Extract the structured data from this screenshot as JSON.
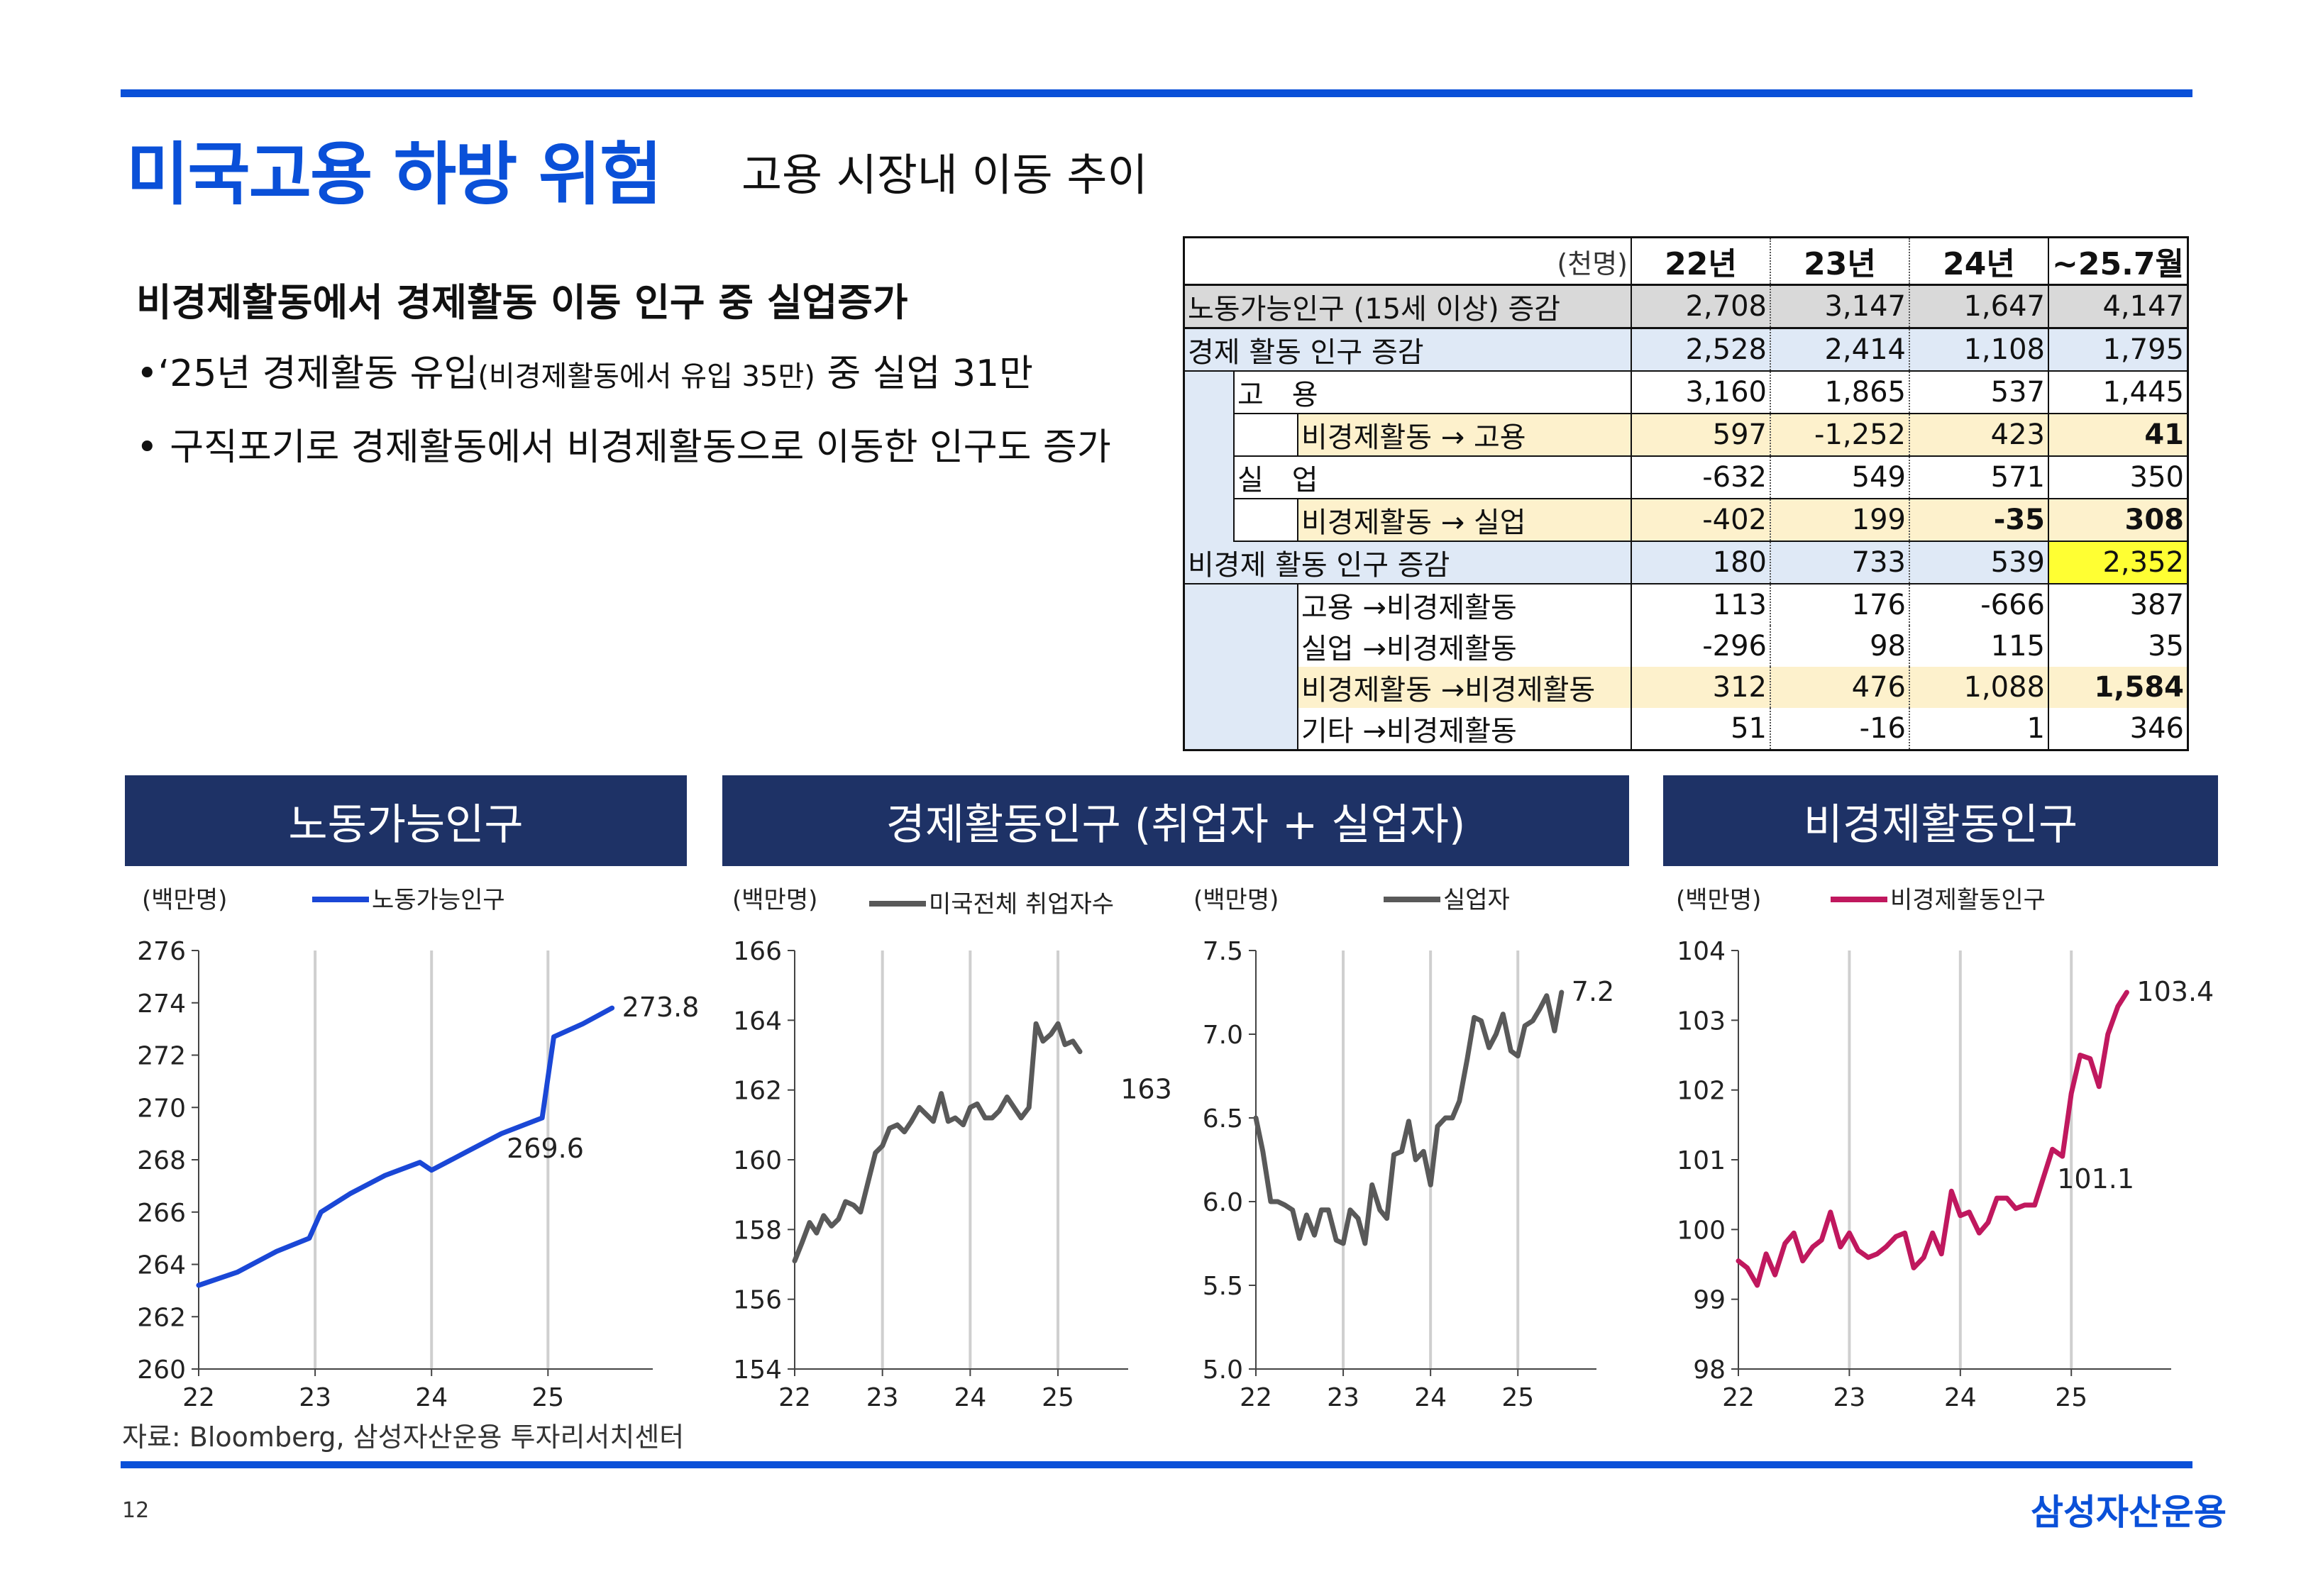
{
  "header": {
    "title": "미국고용 하방 위험",
    "subtitle": "고용 시장내 이동 추이"
  },
  "text": {
    "lead": "비경제활동에서 경제활동 이동 인구 중 실업증가",
    "bullet1_main": "•‘25년 경제활동 유입",
    "bullet1_small": "(비경제활동에서 유입 35만)",
    "bullet1_tail": " 중 실업 31만",
    "bullet2": "• 구직포기로 경제활동에서 비경제활동으로 이동한 인구도 증가"
  },
  "table": {
    "unit": "(천명)",
    "columns": [
      "22년",
      "23년",
      "24년",
      "~25.7월"
    ],
    "rows": [
      {
        "label": "노동가능인구 (15세 이상) 증감",
        "values": [
          "2,708",
          "3,147",
          "1,647",
          "4,147"
        ]
      },
      {
        "label": "경제 활동 인구 증감",
        "values": [
          "2,528",
          "2,414",
          "1,108",
          "1,795"
        ]
      },
      {
        "label": "고　용",
        "values": [
          "3,160",
          "1,865",
          "537",
          "1,445"
        ]
      },
      {
        "label": "비경제활동 → 고용",
        "values": [
          "597",
          "-1,252",
          "423",
          "41"
        ]
      },
      {
        "label": "실　업",
        "values": [
          "-632",
          "549",
          "571",
          "350"
        ]
      },
      {
        "label": "비경제활동 → 실업",
        "values": [
          "-402",
          "199",
          "-35",
          "308"
        ]
      },
      {
        "label": "비경제 활동 인구 증감",
        "values": [
          "180",
          "733",
          "539",
          "2,352"
        ]
      },
      {
        "label": "고용 →비경제활동",
        "values": [
          "113",
          "176",
          "-666",
          "387"
        ]
      },
      {
        "label": "실업 →비경제활동",
        "values": [
          "-296",
          "98",
          "115",
          "35"
        ]
      },
      {
        "label": "비경제활동 →비경제활동",
        "values": [
          "312",
          "476",
          "1,088",
          "1,584"
        ]
      },
      {
        "label": "기타 →비경제활동",
        "values": [
          "51",
          "-16",
          "1",
          "346"
        ]
      }
    ]
  },
  "panels": {
    "labor": "노동가능인구",
    "active": "경제활동인구 (취업자 + 실업자)",
    "inactive": "비경제활동인구"
  },
  "footer": {
    "source": "자료: Bloomberg, 삼성자산운용 투자리서치센터",
    "page": "12",
    "logo": "삼성자산운용"
  },
  "colors": {
    "accent": "#0a50d8",
    "panel_header": "#1e3266",
    "labor_line": "#1a47d6",
    "grey_line": "#595959",
    "inactive_line": "#c0185e"
  },
  "chart_data": [
    {
      "type": "line",
      "unit": "(백만명)",
      "series": [
        {
          "name": "노동가능인구",
          "color": "#1a47d6",
          "x": [
            22.0,
            22.33,
            22.67,
            22.95,
            23.05,
            23.3,
            23.6,
            23.9,
            24.0,
            24.3,
            24.6,
            24.95,
            25.05,
            25.3,
            25.55
          ],
          "values": [
            263.2,
            263.7,
            264.5,
            265.0,
            266.0,
            266.7,
            267.4,
            267.9,
            267.6,
            268.3,
            269.0,
            269.6,
            272.7,
            273.2,
            273.8
          ]
        }
      ],
      "annotations": [
        {
          "x": 25.55,
          "y": 273.8,
          "text": "273.8"
        },
        {
          "x": 24.95,
          "y": 269.6,
          "text": "269.6"
        }
      ],
      "yticks": [
        "276",
        "274",
        "272",
        "270",
        "268",
        "266",
        "264",
        "262",
        "260"
      ],
      "xticks": [
        "22",
        "23",
        "24",
        "25"
      ],
      "ylim": [
        260,
        276
      ],
      "xlim": [
        22,
        25.9
      ]
    },
    {
      "type": "line",
      "unit": "(백만명)",
      "series": [
        {
          "name": "미국전체 취업자수",
          "color": "#595959",
          "x": [
            22.0,
            22.08,
            22.17,
            22.25,
            22.33,
            22.42,
            22.5,
            22.58,
            22.67,
            22.75,
            22.83,
            22.92,
            23.0,
            23.08,
            23.17,
            23.25,
            23.33,
            23.42,
            23.5,
            23.58,
            23.67,
            23.75,
            23.83,
            23.92,
            24.0,
            24.08,
            24.17,
            24.25,
            24.33,
            24.42,
            24.5,
            24.58,
            24.67,
            24.75,
            24.83,
            24.92,
            25.0,
            25.08,
            25.17,
            25.25,
            25.33,
            25.42,
            25.5
          ],
          "values": [
            157.1,
            157.6,
            158.2,
            157.9,
            158.4,
            158.1,
            158.3,
            158.8,
            158.7,
            158.5,
            159.3,
            160.2,
            160.4,
            160.9,
            161.0,
            160.8,
            161.1,
            161.5,
            161.3,
            161.1,
            161.9,
            161.1,
            161.2,
            161.0,
            161.5,
            161.6,
            161.2,
            161.2,
            161.4,
            161.8,
            161.5,
            161.2,
            161.5,
            163.9,
            163.4,
            163.6,
            163.9,
            163.3,
            163.4,
            163.1,
            null,
            null,
            null
          ]
        }
      ],
      "annotations": [
        {
          "x": 25.6,
          "y": 162.0,
          "text": "163"
        }
      ],
      "yticks": [
        "166",
        "164",
        "162",
        "160",
        "158",
        "156",
        "154"
      ],
      "xticks": [
        "22",
        "23",
        "24",
        "25"
      ],
      "ylim": [
        154,
        166
      ],
      "xlim": [
        22,
        25.8
      ]
    },
    {
      "type": "line",
      "unit": "(백만명)",
      "series": [
        {
          "name": "실업자",
          "color": "#595959",
          "x": [
            22.0,
            22.08,
            22.17,
            22.25,
            22.33,
            22.42,
            22.5,
            22.58,
            22.67,
            22.75,
            22.83,
            22.92,
            23.0,
            23.08,
            23.17,
            23.25,
            23.33,
            23.42,
            23.5,
            23.58,
            23.67,
            23.75,
            23.83,
            23.92,
            24.0,
            24.08,
            24.17,
            24.25,
            24.33,
            24.42,
            24.5,
            24.58,
            24.67,
            24.75,
            24.83,
            24.92,
            25.0,
            25.08,
            25.17,
            25.25,
            25.33,
            25.42,
            25.5
          ],
          "values": [
            6.5,
            6.3,
            6.0,
            6.0,
            5.98,
            5.95,
            5.78,
            5.92,
            5.8,
            5.95,
            5.95,
            5.77,
            5.75,
            5.95,
            5.9,
            5.75,
            6.1,
            5.95,
            5.9,
            6.28,
            6.3,
            6.48,
            6.25,
            6.3,
            6.1,
            6.45,
            6.5,
            6.5,
            6.6,
            6.85,
            7.1,
            7.08,
            6.92,
            7.0,
            7.12,
            6.9,
            6.87,
            7.05,
            7.08,
            7.15,
            7.23,
            7.02,
            7.25
          ]
        }
      ],
      "annotations": [
        {
          "x": 25.5,
          "y": 7.25,
          "text": "7.2"
        }
      ],
      "yticks": [
        "7.5",
        "7.0",
        "6.5",
        "6.0",
        "5.5",
        "5.0"
      ],
      "xticks": [
        "22",
        "23",
        "24",
        "25"
      ],
      "ylim": [
        5.0,
        7.5
      ],
      "xlim": [
        22,
        25.9
      ]
    },
    {
      "type": "line",
      "unit": "(백만명)",
      "series": [
        {
          "name": "비경제활동인구",
          "color": "#c0185e",
          "x": [
            22.0,
            22.08,
            22.17,
            22.25,
            22.33,
            22.42,
            22.5,
            22.58,
            22.67,
            22.75,
            22.83,
            22.92,
            23.0,
            23.08,
            23.17,
            23.25,
            23.33,
            23.42,
            23.5,
            23.58,
            23.67,
            23.75,
            23.83,
            23.92,
            24.0,
            24.08,
            24.17,
            24.25,
            24.33,
            24.42,
            24.5,
            24.58,
            24.67,
            24.75,
            24.83,
            24.92,
            25.0,
            25.08,
            25.17,
            25.25,
            25.33,
            25.42,
            25.5
          ],
          "values": [
            99.55,
            99.45,
            99.2,
            99.65,
            99.35,
            99.8,
            99.95,
            99.55,
            99.75,
            99.85,
            100.25,
            99.75,
            99.95,
            99.7,
            99.6,
            99.65,
            99.75,
            99.9,
            99.95,
            99.45,
            99.6,
            99.95,
            99.65,
            100.55,
            100.2,
            100.25,
            99.95,
            100.1,
            100.45,
            100.45,
            100.3,
            100.35,
            100.35,
            100.75,
            101.15,
            101.05,
            101.95,
            102.5,
            102.45,
            102.05,
            102.8,
            103.2,
            103.4
          ]
        }
      ],
      "annotations": [
        {
          "x": 25.5,
          "y": 103.4,
          "text": "103.4"
        },
        {
          "x": 25.0,
          "y": 101.1,
          "text": "101.1"
        }
      ],
      "yticks": [
        "104",
        "103",
        "102",
        "101",
        "100",
        "99",
        "98"
      ],
      "xticks": [
        "22",
        "23",
        "24",
        "25"
      ],
      "ylim": [
        98,
        104
      ],
      "xlim": [
        22,
        25.9
      ]
    }
  ]
}
